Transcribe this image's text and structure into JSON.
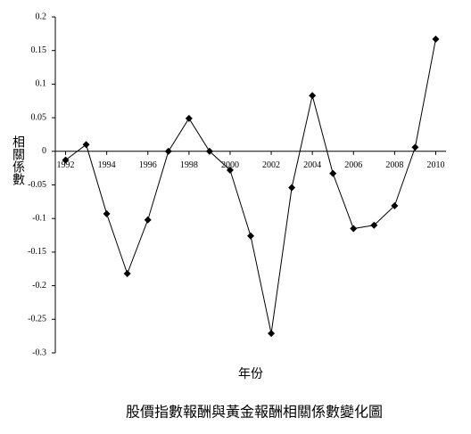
{
  "chart_data": {
    "type": "line",
    "title": "股價指數報酬與黃金報酬相關係數變化圖",
    "x_label": "年份",
    "y_label": "相關係數",
    "x": [
      1992,
      1993,
      1994,
      1995,
      1996,
      1997,
      1998,
      1999,
      2000,
      2001,
      2002,
      2003,
      2004,
      2005,
      2006,
      2007,
      2008,
      2009,
      2010
    ],
    "values": [
      -0.013,
      0.01,
      -0.093,
      -0.182,
      -0.102,
      0,
      0.049,
      0,
      -0.028,
      -0.126,
      -0.271,
      -0.054,
      0.083,
      -0.033,
      -0.115,
      -0.11,
      -0.081,
      0.006,
      0.167
    ],
    "color": "#000000",
    "xlim": [
      1991.5,
      2010.5
    ],
    "xticks": [
      1992,
      1994,
      1996,
      1998,
      2000,
      2002,
      2004,
      2006,
      2008,
      2010
    ],
    "ylim": [
      -0.3,
      0.2
    ],
    "yticks": [
      -0.3,
      -0.25,
      -0.2,
      -0.15,
      -0.1,
      -0.05,
      0,
      0.05,
      0.1,
      0.15,
      0.2
    ]
  }
}
